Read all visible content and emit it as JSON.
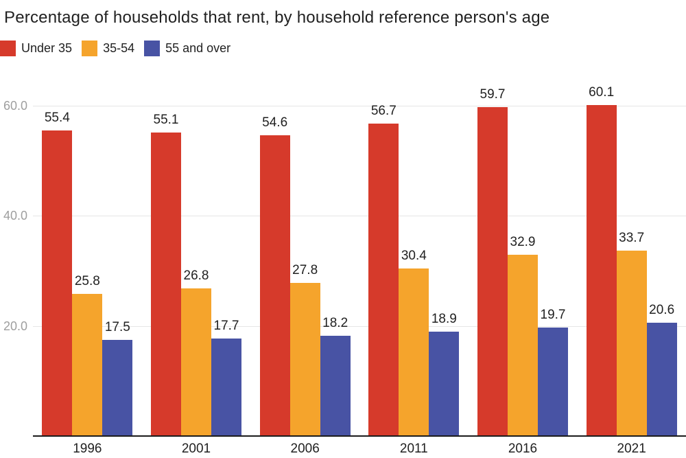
{
  "title": "Percentage of households that rent, by household reference person's age",
  "chart_data": {
    "type": "bar",
    "title": "Percentage of households that rent, by household reference person's age",
    "categories": [
      "1996",
      "2001",
      "2006",
      "2011",
      "2016",
      "2021"
    ],
    "series": [
      {
        "name": "Under 35",
        "color": "#d63a2b",
        "values": [
          55.4,
          55.1,
          54.6,
          56.7,
          59.7,
          60.1
        ]
      },
      {
        "name": "35-54",
        "color": "#f5a42c",
        "values": [
          25.8,
          26.8,
          27.8,
          30.4,
          32.9,
          33.7
        ]
      },
      {
        "name": "55 and over",
        "color": "#4853a4",
        "values": [
          17.5,
          17.7,
          18.2,
          18.9,
          19.7,
          20.6
        ]
      }
    ],
    "xlabel": "",
    "ylabel": "",
    "y_ticks": [
      20.0,
      40.0,
      60.0
    ],
    "y_tick_labels": [
      "20.0",
      "40.0",
      "60.0"
    ],
    "ylim": [
      0,
      65
    ],
    "grid": true,
    "legend_position": "top-left",
    "value_labels": true
  },
  "colors": {
    "background": "#ffffff",
    "text": "#212121",
    "tick_label": "#9e9e9e",
    "gridline": "#e6e6e6",
    "axis_line": "#1b1b1b"
  }
}
